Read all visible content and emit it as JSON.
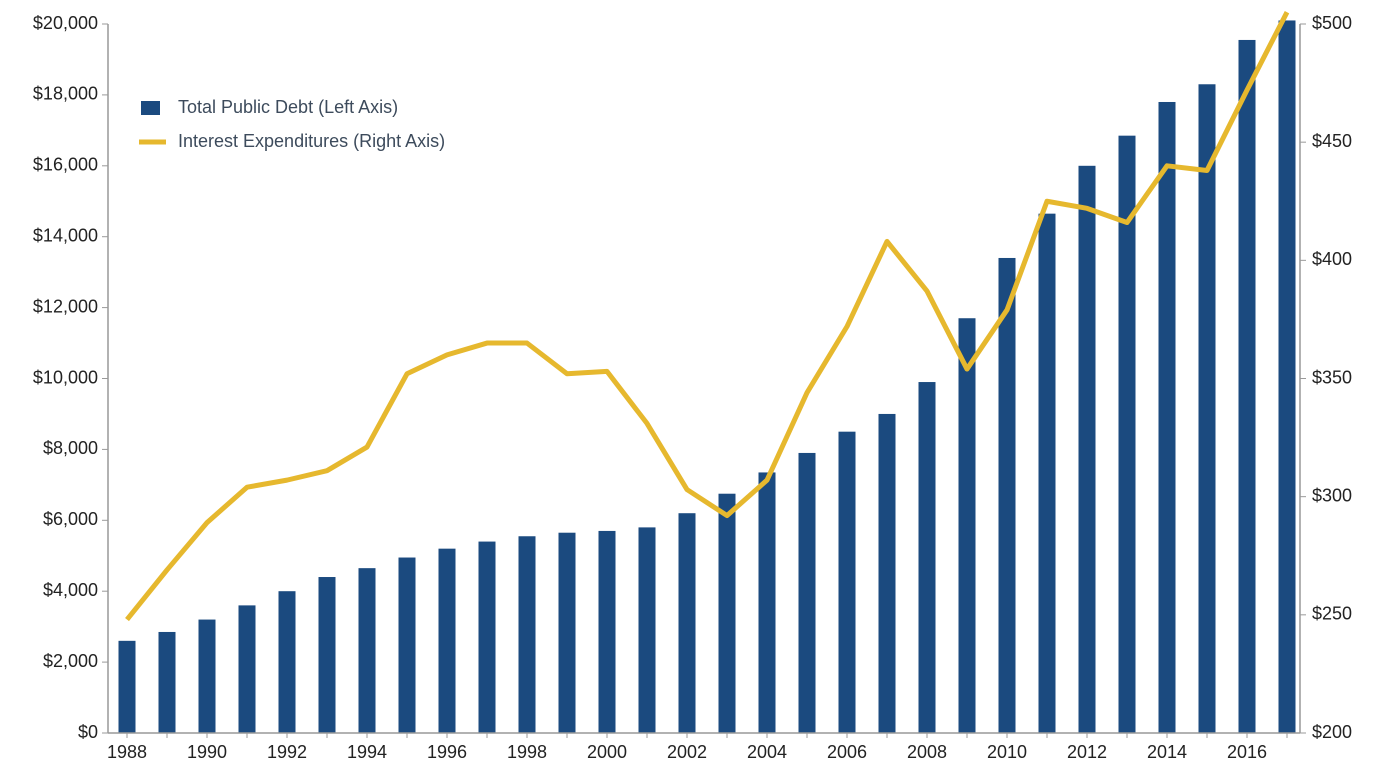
{
  "chart_data": {
    "type": "bar_line",
    "categories": [
      "1988",
      null,
      "1990",
      null,
      "1992",
      null,
      "1994",
      null,
      "1996",
      null,
      "1998",
      null,
      "2000",
      null,
      "2002",
      null,
      "2004",
      null,
      "2006",
      null,
      "2008",
      null,
      "2010",
      null,
      "2012",
      null,
      "2014",
      null,
      "2016",
      null
    ],
    "series": [
      {
        "name": "Total Public Debt (Left Axis)",
        "color": "#1b4a7f",
        "type": "bar",
        "values": [
          2600,
          2850,
          3200,
          3600,
          4000,
          4400,
          4650,
          4950,
          5200,
          5400,
          5550,
          5650,
          5700,
          5800,
          6200,
          6750,
          7350,
          7900,
          8500,
          9000,
          9900,
          11700,
          13400,
          14650,
          16000,
          16850,
          17800,
          18300,
          19550,
          20100
        ]
      },
      {
        "name": "Interest Expenditures (Right Axis)",
        "color": "#e6b82e",
        "type": "line",
        "axis": "y2",
        "values": [
          248,
          269,
          289,
          304,
          307,
          311,
          321,
          352,
          360,
          365,
          365,
          352,
          353,
          331,
          303,
          292,
          307,
          344,
          372,
          408,
          387,
          354,
          379,
          425,
          422,
          416,
          440,
          438,
          472,
          505
        ]
      }
    ],
    "ylim": [
      0,
      20000
    ],
    "yticks": [
      {
        "value": 0,
        "label": "$0"
      },
      {
        "value": 2000,
        "label": "$2,000"
      },
      {
        "value": 4000,
        "label": "$4,000"
      },
      {
        "value": 6000,
        "label": "$6,000"
      },
      {
        "value": 8000,
        "label": "$8,000"
      },
      {
        "value": 10000,
        "label": "$10,000"
      },
      {
        "value": 12000,
        "label": "$12,000"
      },
      {
        "value": 14000,
        "label": "$14,000"
      },
      {
        "value": 16000,
        "label": "$16,000"
      },
      {
        "value": 18000,
        "label": "$18,000"
      },
      {
        "value": 20000,
        "label": "$20,000"
      }
    ],
    "y2lim": [
      200,
      500
    ],
    "y2ticks": [
      {
        "value": 200,
        "label": "$200"
      },
      {
        "value": 250,
        "label": "$250"
      },
      {
        "value": 300,
        "label": "$300"
      },
      {
        "value": 350,
        "label": "$350"
      },
      {
        "value": 400,
        "label": "$400"
      },
      {
        "value": 450,
        "label": "$450"
      },
      {
        "value": 500,
        "label": "$500"
      }
    ],
    "legend": "upper left",
    "grid": false
  }
}
